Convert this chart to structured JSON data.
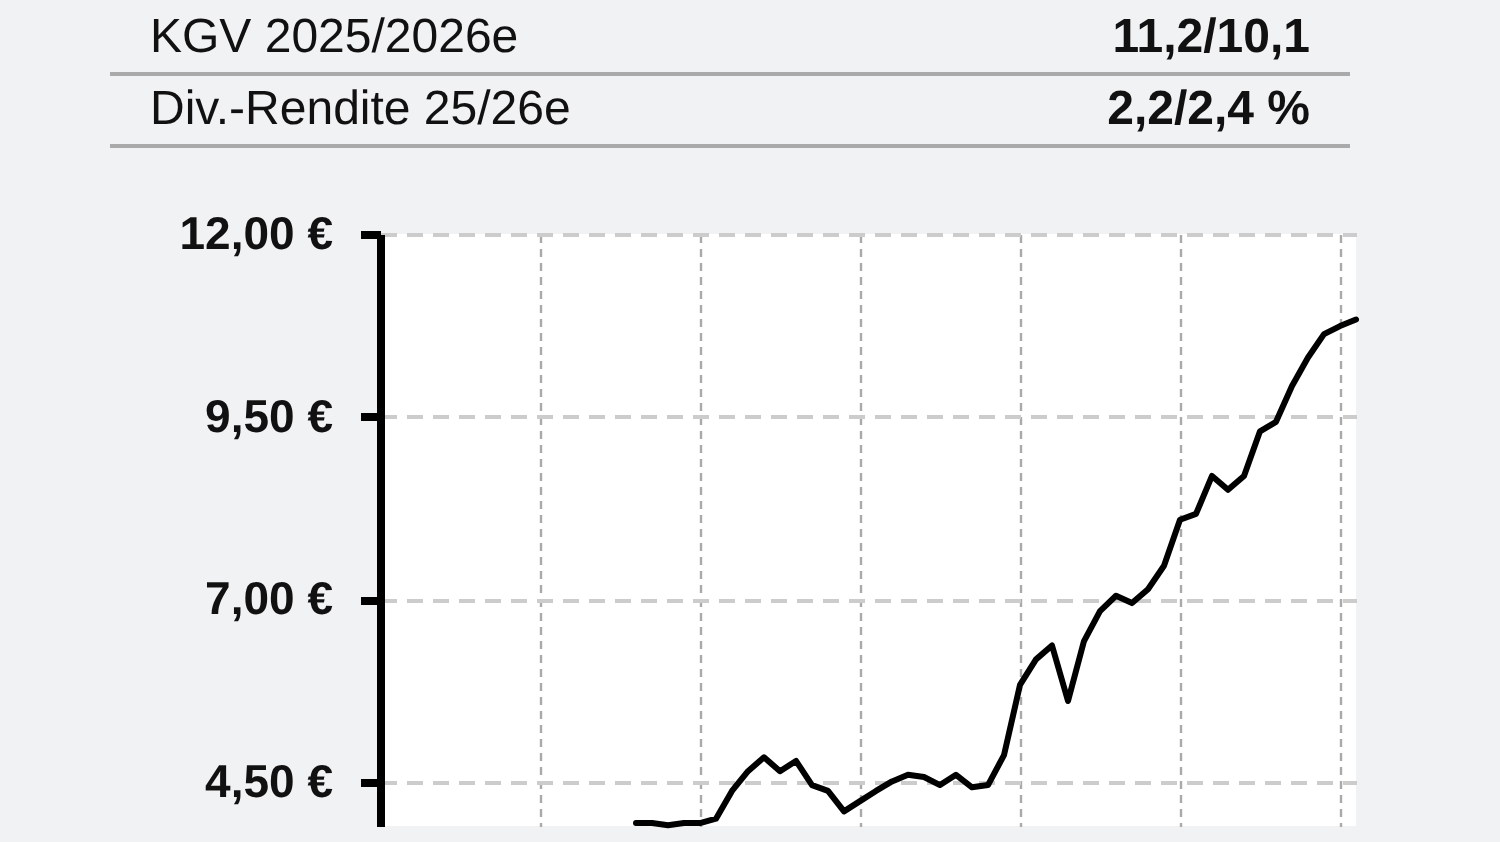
{
  "chart_data": {
    "type": "line",
    "annotations": [
      "KGV 2025/2026e",
      "11,2/10,1",
      "Div.-Rendite 25/26e",
      "2,2/2,4 %"
    ],
    "categories": [
      null,
      null,
      null,
      null,
      null,
      null,
      null,
      null,
      null,
      null,
      null,
      null,
      null,
      null,
      null,
      null,
      null,
      null,
      null,
      null,
      null,
      null,
      null,
      null,
      null,
      null,
      null,
      null,
      null,
      null,
      null,
      null,
      null,
      null,
      null,
      null,
      null,
      null,
      null,
      null,
      null,
      null,
      null,
      null,
      null,
      null,
      null,
      null,
      null,
      null,
      null,
      null,
      null,
      null,
      null,
      null,
      null,
      null,
      null,
      null,
      null,
      null
    ],
    "series": [
      {
        "color": "#000000",
        "values": [
          null,
          null,
          null,
          null,
          null,
          null,
          null,
          null,
          null,
          null,
          null,
          null,
          null,
          null,
          null,
          null,
          3.94,
          3.94,
          3.91,
          3.94,
          3.94,
          4.0,
          4.38,
          4.65,
          4.84,
          4.65,
          4.79,
          4.46,
          4.38,
          4.1,
          4.24,
          4.38,
          4.51,
          4.6,
          4.57,
          4.46,
          4.6,
          4.43,
          4.46,
          4.87,
          5.83,
          6.18,
          6.37,
          5.61,
          6.43,
          6.84,
          7.05,
          6.95,
          7.14,
          7.46,
          8.09,
          8.17,
          8.69,
          8.5,
          8.69,
          9.3,
          9.43,
          9.92,
          10.31,
          10.63,
          10.74,
          10.83
        ]
      }
    ],
    "ylim": [
      3.9,
      12
    ],
    "yticks": [
      {
        "value": 4.5,
        "label": "4,50 €"
      },
      {
        "value": 7,
        "label": "7,00 €"
      },
      {
        "value": 9.5,
        "label": "9,50 €"
      },
      {
        "value": 12,
        "label": "12,00 €"
      }
    ],
    "grid": true,
    "tick_labels": "y",
    "line_style": "solid"
  }
}
